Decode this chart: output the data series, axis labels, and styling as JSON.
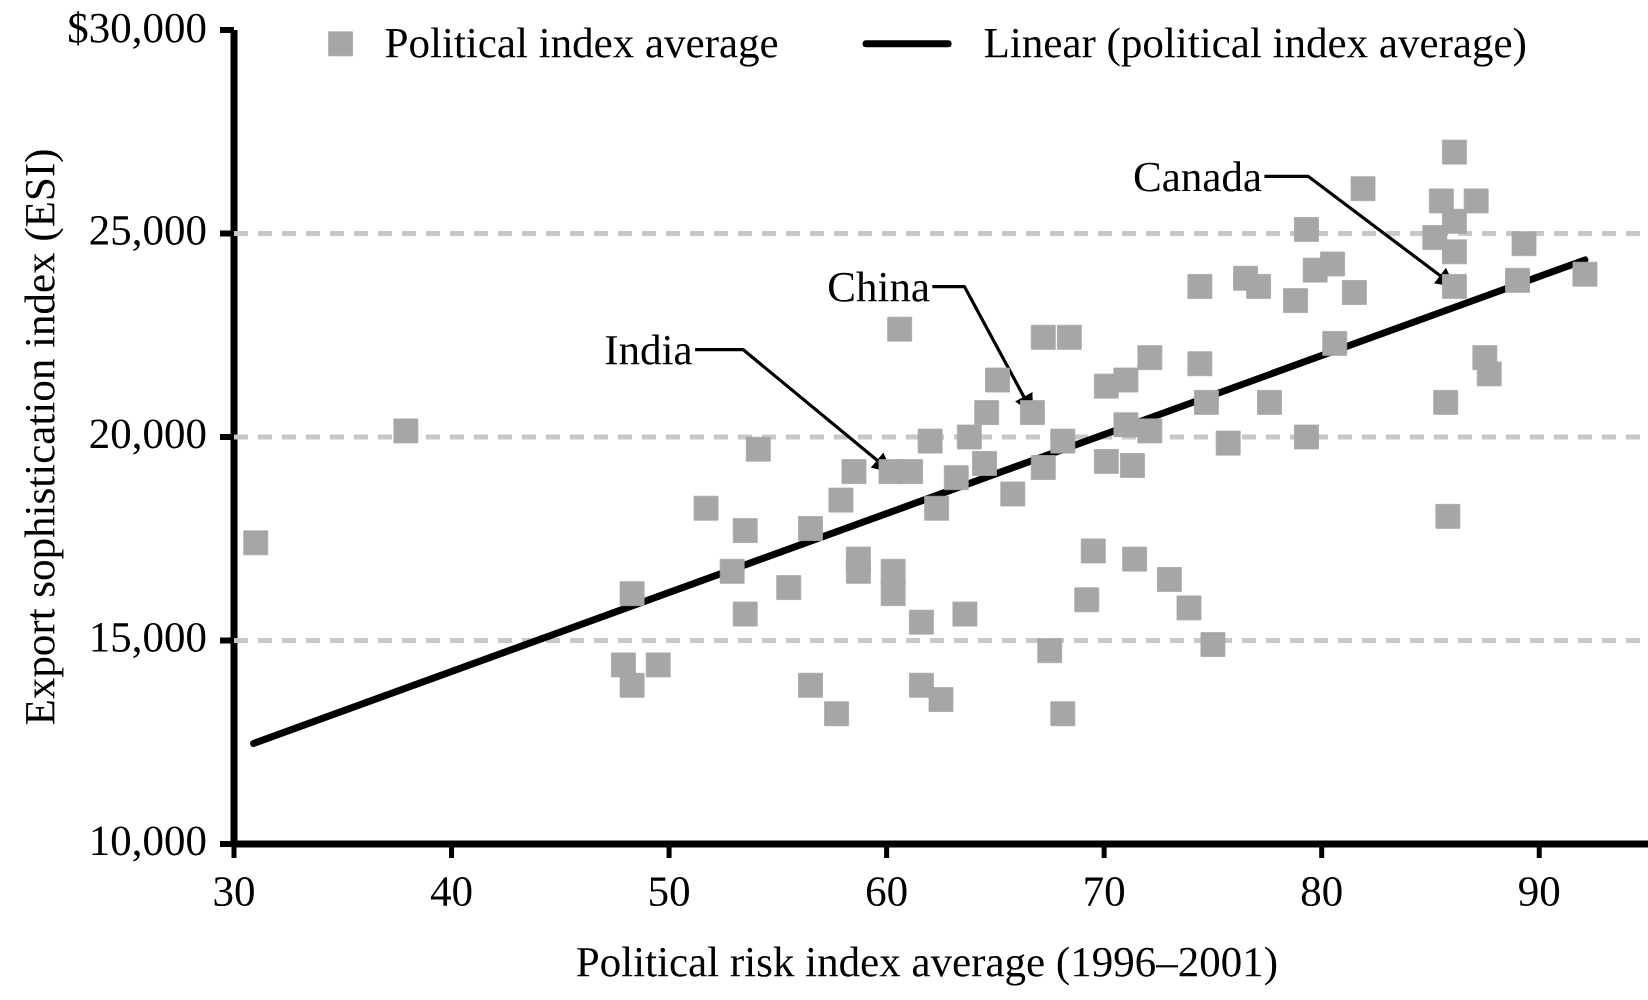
{
  "chart_data": {
    "type": "scatter",
    "xlabel": "Political risk index average (1996–2001)",
    "ylabel": "Export sophistication index (ESI)",
    "xlim": [
      30,
      95
    ],
    "ylim": [
      10000,
      30000
    ],
    "xticks": [
      30,
      40,
      50,
      60,
      70,
      80,
      90
    ],
    "yticks": [
      {
        "value": 10000,
        "label": "10,000"
      },
      {
        "value": 15000,
        "label": "15,000"
      },
      {
        "value": 20000,
        "label": "20,000"
      },
      {
        "value": 25000,
        "label": "25,000"
      },
      {
        "value": 30000,
        "label": "$30,000"
      }
    ],
    "grid": "y",
    "legend": "top",
    "series": [
      {
        "name": "Political index average",
        "color": "#a6a6a6",
        "marker": "square",
        "x": [
          31.0,
          37.9,
          47.9,
          48.3,
          48.3,
          49.5,
          51.7,
          52.9,
          53.5,
          53.5,
          54.1,
          55.5,
          56.5,
          56.5,
          57.7,
          57.9,
          58.5,
          58.7,
          58.7,
          60.2,
          61.1,
          60.3,
          60.3,
          60.6,
          61.6,
          61.6,
          62.5,
          62.0,
          62.3,
          63.2,
          63.6,
          63.8,
          64.5,
          64.6,
          65.1,
          65.8,
          66.7,
          67.2,
          68.4,
          67.2,
          67.5,
          68.1,
          68.1,
          69.2,
          69.5,
          70.1,
          70.1,
          71.0,
          71.0,
          71.3,
          71.4,
          72.1,
          72.1,
          73.0,
          73.9,
          74.4,
          74.4,
          74.7,
          75.0,
          75.7,
          76.5,
          77.1,
          77.6,
          78.8,
          79.3,
          79.3,
          79.7,
          80.5,
          80.6,
          81.5,
          81.9,
          85.2,
          85.5,
          86.1,
          87.1,
          86.1,
          86.1,
          86.1,
          85.7,
          85.8,
          87.5,
          87.7,
          89.0,
          89.3,
          92.1
        ],
        "values": [
          17400,
          20150,
          14400,
          13900,
          16150,
          14400,
          18250,
          16700,
          17700,
          15650,
          19700,
          16300,
          17750,
          13900,
          13200,
          18450,
          19150,
          17000,
          16700,
          19150,
          19150,
          16700,
          16150,
          22650,
          15450,
          13900,
          13550,
          19900,
          18250,
          19000,
          15650,
          20000,
          19350,
          20600,
          21400,
          18600,
          20600,
          22450,
          22450,
          19250,
          14750,
          19900,
          13200,
          16000,
          17200,
          19400,
          21250,
          21400,
          20300,
          19300,
          17000,
          21950,
          20150,
          16500,
          15800,
          23700,
          21800,
          20850,
          14900,
          19850,
          23900,
          23700,
          20850,
          23350,
          25100,
          20000,
          24100,
          24250,
          22300,
          23550,
          26100,
          24900,
          25800,
          27000,
          25800,
          25300,
          24550,
          23700,
          20850,
          18050,
          21950,
          21550,
          23850,
          24750,
          24000
        ]
      },
      {
        "name": "Linear (political index average)",
        "type": "line",
        "color": "#000000",
        "x": [
          30.9,
          92.1
        ],
        "values": [
          12470,
          24350
        ]
      }
    ],
    "annotations": [
      {
        "text": "India",
        "x": 60.2,
        "y": 19150
      },
      {
        "text": "China",
        "x": 66.7,
        "y": 20600
      },
      {
        "text": "Canada",
        "x": 86.1,
        "y": 23700
      }
    ]
  }
}
